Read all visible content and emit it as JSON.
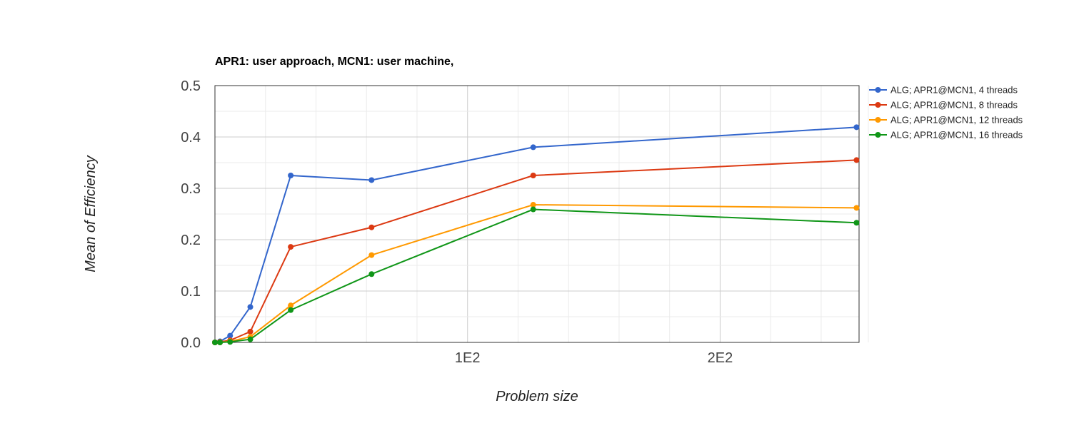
{
  "chart_data": {
    "type": "line",
    "title": "APR1: user approach, MCN1: user machine,",
    "xlabel": "Problem size",
    "ylabel": "Mean of Efficiency",
    "xlim": [
      0,
      255
    ],
    "ylim": [
      0,
      0.5
    ],
    "x_ticks": [
      {
        "value": 100,
        "label": "1E2"
      },
      {
        "value": 200,
        "label": "2E2"
      }
    ],
    "y_ticks": [
      {
        "value": 0.0,
        "label": "0.0"
      },
      {
        "value": 0.1,
        "label": "0.1"
      },
      {
        "value": 0.2,
        "label": "0.2"
      },
      {
        "value": 0.3,
        "label": "0.3"
      },
      {
        "value": 0.4,
        "label": "0.4"
      },
      {
        "value": 0.5,
        "label": "0.5"
      }
    ],
    "grid": true,
    "legend_position": "right",
    "x": [
      0,
      2,
      6,
      14,
      30,
      62,
      126,
      254
    ],
    "series": [
      {
        "name": "ALG; APR1@MCN1, 4 threads",
        "color": "#3366cc",
        "values": [
          0.0,
          0.002,
          0.013,
          0.069,
          0.325,
          0.316,
          0.38,
          0.419
        ]
      },
      {
        "name": "ALG; APR1@MCN1, 8 threads",
        "color": "#dc3912",
        "values": [
          0.0,
          0.001,
          0.004,
          0.021,
          0.186,
          0.224,
          0.325,
          0.355
        ]
      },
      {
        "name": "ALG; APR1@MCN1, 12 threads",
        "color": "#ff9900",
        "values": [
          0.0,
          0.0,
          0.002,
          0.011,
          0.072,
          0.17,
          0.268,
          0.262
        ]
      },
      {
        "name": "ALG; APR1@MCN1, 16 threads",
        "color": "#109618",
        "values": [
          0.0,
          0.0,
          0.001,
          0.006,
          0.063,
          0.133,
          0.259,
          0.233
        ]
      }
    ]
  }
}
